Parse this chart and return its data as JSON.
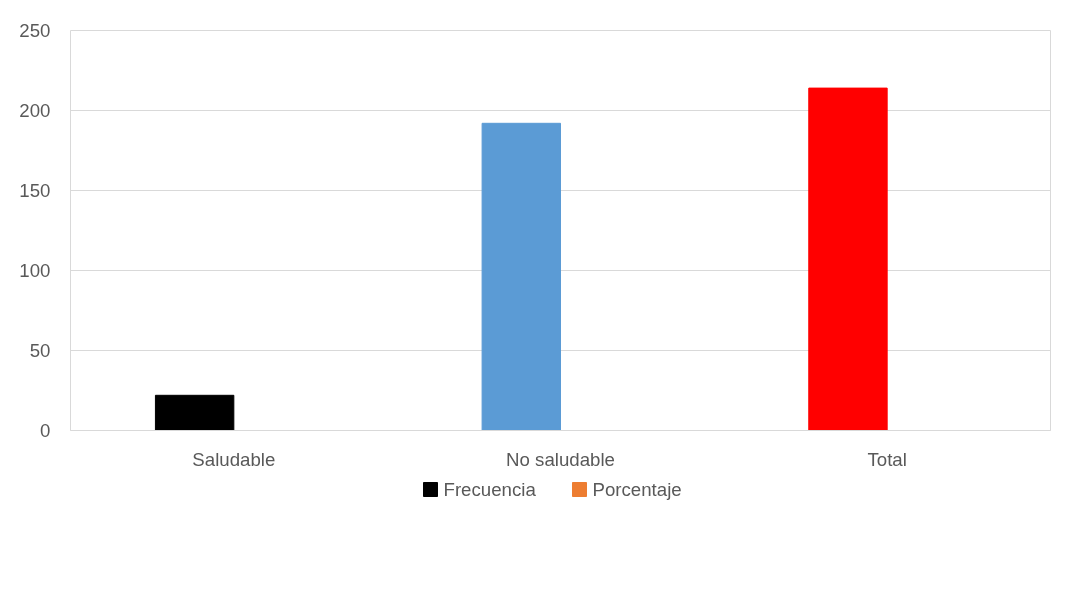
{
  "chart_data": {
    "type": "bar",
    "categories": [
      "Saludable",
      "No saludable",
      "Total"
    ],
    "series": [
      {
        "name": "Frecuencia",
        "colors": [
          "#000000",
          "#5b9bd5",
          "#ff0000"
        ],
        "color": "#000000",
        "values": [
          22,
          192,
          214
        ]
      },
      {
        "name": "Porcentaje",
        "color": "#ed7d31",
        "values": [
          null,
          null,
          null
        ]
      }
    ],
    "ylim": [
      0,
      250
    ],
    "yticks": [
      0,
      50,
      100,
      150,
      200,
      250
    ],
    "grid": "y",
    "legend": "bottom"
  }
}
